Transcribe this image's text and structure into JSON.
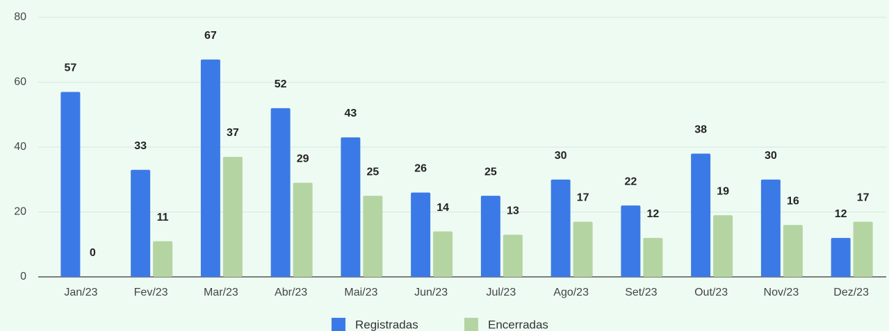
{
  "chart_data": {
    "type": "bar",
    "categories": [
      "Jan/23",
      "Fev/23",
      "Mar/23",
      "Abr/23",
      "Mai/23",
      "Jun/23",
      "Jul/23",
      "Ago/23",
      "Set/23",
      "Out/23",
      "Nov/23",
      "Dez/23"
    ],
    "series": [
      {
        "name": "Registradas",
        "color": "#3b7ae6",
        "values": [
          57,
          33,
          67,
          52,
          43,
          26,
          25,
          30,
          22,
          38,
          30,
          12
        ]
      },
      {
        "name": "Encerradas",
        "color": "#b4d5a2",
        "values": [
          0,
          11,
          37,
          29,
          25,
          14,
          13,
          17,
          12,
          19,
          16,
          17
        ]
      }
    ],
    "ylim": [
      0,
      80
    ],
    "yticks": [
      0,
      20,
      40,
      60,
      80
    ],
    "grid": true,
    "legend": "bottom"
  }
}
